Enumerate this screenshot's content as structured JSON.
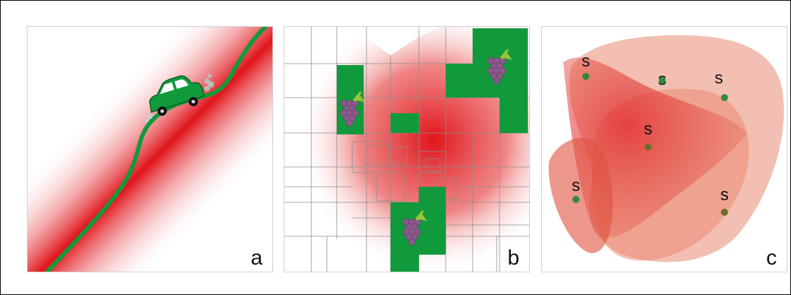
{
  "panels": [
    {
      "label": "a",
      "name": "panel-a",
      "scene": "car on winding road through red gradient corridor"
    },
    {
      "label": "b",
      "name": "panel-b",
      "scene": "grid of parcels with red gradient and green vineyard plots with grape icons"
    },
    {
      "label": "c",
      "name": "panel-c",
      "scene": "overlapping translucent red regions with green s-marked points"
    }
  ],
  "points_c_label": "s",
  "colors": {
    "red": "#e0141a",
    "green": "#119a3c",
    "salmon": "#e98a73",
    "point_green": "#2f8b3a",
    "point_olive": "#6c6f2a",
    "grape": "#8c5a8c",
    "leaf": "#9ac23a",
    "grid_line": "#8c8c8c"
  }
}
